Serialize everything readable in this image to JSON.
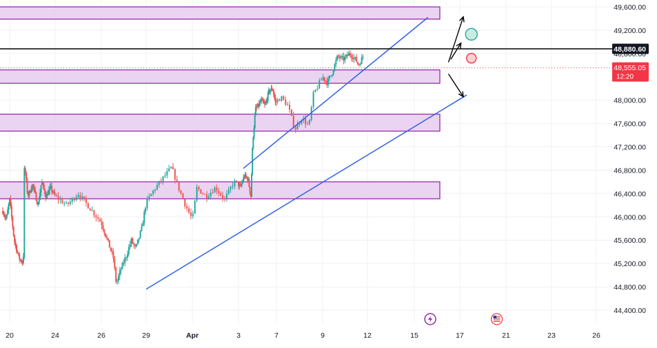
{
  "chart_data": {
    "type": "candlestick",
    "price_axis": {
      "range": [
        44250,
        49800
      ],
      "ticks": [
        {
          "value": 49600,
          "label": "49,600.00"
        },
        {
          "value": 49200,
          "label": "49,200.00"
        },
        {
          "value": 48800,
          "label": "48,800.00"
        },
        {
          "value": 48000,
          "label": "48,000.00"
        },
        {
          "value": 47600,
          "label": "47,600.00"
        },
        {
          "value": 47200,
          "label": "47,200.00"
        },
        {
          "value": 46800,
          "label": "46,800.00"
        },
        {
          "value": 46400,
          "label": "46,400.00"
        },
        {
          "value": 46000,
          "label": "46,000.00"
        },
        {
          "value": 45600,
          "label": "45,600.00"
        },
        {
          "value": 45200,
          "label": "45,200.00"
        },
        {
          "value": 44800,
          "label": "44,800.00"
        },
        {
          "value": 44400,
          "label": "44,400.00"
        }
      ]
    },
    "time_axis": {
      "unit": "day",
      "range": [
        19.4,
        27.2
      ],
      "ticks": [
        {
          "t": 20,
          "label": "20"
        },
        {
          "t": 24,
          "label": "24"
        },
        {
          "t": 26,
          "label": "26"
        },
        {
          "t": 29,
          "label": "29"
        },
        {
          "t": 31,
          "label": "Apr"
        },
        {
          "t": 33,
          "label": "3"
        },
        {
          "t": 37,
          "label": "7"
        },
        {
          "t": 39,
          "label": "9"
        },
        {
          "t": 42,
          "label": "12"
        },
        {
          "t": 45,
          "label": "15"
        },
        {
          "t": 47,
          "label": "17"
        },
        {
          "t": 51,
          "label": "21"
        },
        {
          "t": 53,
          "label": "23"
        },
        {
          "t": 56,
          "label": "26"
        }
      ]
    },
    "horizontal_line": {
      "price": 48880.6,
      "label": "48,880.60",
      "color": "#000000"
    },
    "last_price": {
      "price": 48555.05,
      "label": "48,555.05",
      "countdown": "12:20",
      "color": "#f23645"
    },
    "zones": [
      {
        "top": 49600,
        "bottom": 49390
      },
      {
        "top": 48520,
        "bottom": 48290
      },
      {
        "top": 47760,
        "bottom": 47470
      },
      {
        "top": 46600,
        "bottom": 46310
      }
    ],
    "channel": {
      "upper": {
        "t1": 33.5,
        "p1": 46830,
        "t2": 45.6,
        "p2": 49420
      },
      "lower": {
        "t1": 29.0,
        "p1": 44760,
        "t2": 47.6,
        "p2": 48090
      }
    },
    "arrows": [
      {
        "from": {
          "t": 46.5,
          "p": 48650
        },
        "to": {
          "t": 47.3,
          "p": 49430
        }
      },
      {
        "from": {
          "t": 46.6,
          "p": 48700
        },
        "to": {
          "t": 47.1,
          "p": 48980
        }
      },
      {
        "from": {
          "t": 46.5,
          "p": 48450
        },
        "to": {
          "t": 47.3,
          "p": 48060
        }
      }
    ],
    "markers": [
      {
        "t": 48.0,
        "p": 49130,
        "type": "target",
        "color": "#26a69a"
      },
      {
        "t": 48.0,
        "p": 48720,
        "type": "stop",
        "color": "#f23645"
      }
    ],
    "bottom_icons": [
      {
        "t": 45.7,
        "icon": "lightning-event-icon",
        "color": "#9c27b0"
      },
      {
        "t": 50.2,
        "icon": "us-flag-event-icon",
        "color": "#f23645"
      }
    ],
    "colors": {
      "up": "#26a69a",
      "down": "#ef5350",
      "zone_fill": "#e6cdee",
      "zone_border": "#9c27b0",
      "channel": "#3161e6",
      "grid": "#eef0f3",
      "axis_text": "#131722"
    },
    "price_path": [
      [
        19.4,
        46100
      ],
      [
        19.7,
        45950
      ],
      [
        20.0,
        46300
      ],
      [
        20.4,
        45600
      ],
      [
        20.8,
        45300
      ],
      [
        21.2,
        45200
      ],
      [
        21.3,
        46900
      ],
      [
        21.6,
        46350
      ],
      [
        22.0,
        46550
      ],
      [
        22.5,
        46200
      ],
      [
        22.8,
        46600
      ],
      [
        23.2,
        46350
      ],
      [
        23.6,
        46500
      ],
      [
        24.0,
        46350
      ],
      [
        24.5,
        46200
      ],
      [
        25.0,
        46400
      ],
      [
        25.5,
        46150
      ],
      [
        26.0,
        45900
      ],
      [
        26.4,
        45600
      ],
      [
        26.8,
        45300
      ],
      [
        27.0,
        44850
      ],
      [
        27.3,
        45100
      ],
      [
        27.7,
        45350
      ],
      [
        28.0,
        45600
      ],
      [
        28.3,
        45450
      ],
      [
        28.7,
        45800
      ],
      [
        29.0,
        46250
      ],
      [
        29.4,
        46500
      ],
      [
        29.8,
        46700
      ],
      [
        30.1,
        46850
      ],
      [
        30.4,
        46500
      ],
      [
        30.7,
        46200
      ],
      [
        31.0,
        45950
      ],
      [
        31.2,
        46500
      ],
      [
        31.6,
        46350
      ],
      [
        32.0,
        46500
      ],
      [
        32.4,
        46300
      ],
      [
        32.8,
        46600
      ],
      [
        33.2,
        46500
      ],
      [
        33.6,
        46700
      ],
      [
        34.0,
        46650
      ],
      [
        34.3,
        46350
      ],
      [
        34.5,
        47300
      ],
      [
        34.8,
        47850
      ],
      [
        35.1,
        47900
      ],
      [
        35.4,
        48000
      ],
      [
        35.8,
        47900
      ],
      [
        36.2,
        48150
      ],
      [
        36.6,
        48200
      ],
      [
        36.9,
        47950
      ],
      [
        37.2,
        48050
      ],
      [
        37.5,
        47900
      ],
      [
        37.8,
        47500
      ],
      [
        38.1,
        47700
      ],
      [
        38.4,
        47550
      ],
      [
        38.6,
        48100
      ],
      [
        39.0,
        48400
      ],
      [
        39.3,
        48300
      ],
      [
        39.6,
        48450
      ],
      [
        40.0,
        48750
      ],
      [
        40.4,
        48700
      ],
      [
        40.8,
        48800
      ],
      [
        41.2,
        48700
      ],
      [
        41.4,
        48600
      ],
      [
        41.7,
        48750
      ]
    ]
  }
}
